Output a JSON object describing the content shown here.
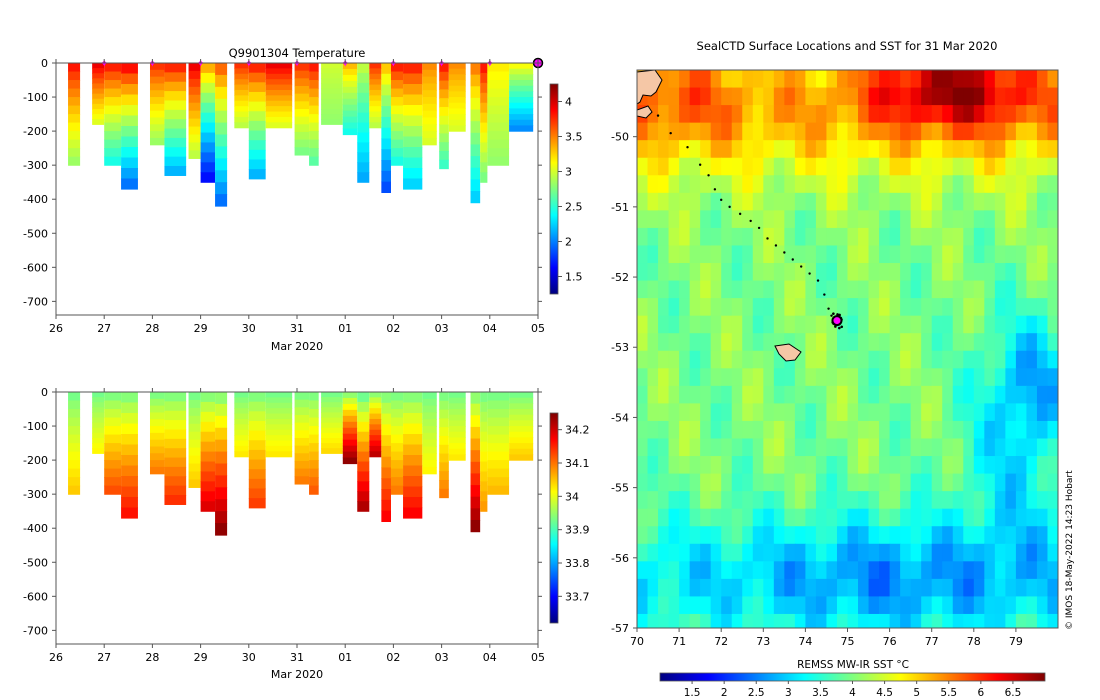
{
  "title_temp": "Q9901304  Temperature",
  "title_map": "SealCTD Surface Locations and SST for 31 Mar 2020",
  "copyright": "© IMOS 18-May-2022 14:23 Hobart",
  "colors": {
    "jet": [
      "#00007f",
      "#0000ff",
      "#007fff",
      "#00ffff",
      "#7fff7f",
      "#ffff00",
      "#ff7f00",
      "#ff0000",
      "#7f0000"
    ],
    "seal_marker": "#ff00ff",
    "land": "#f5c7a6"
  },
  "chart_data": [
    {
      "type": "heatmap",
      "name": "temperature-section",
      "title": "Q9901304  Temperature",
      "xlabel": "Mar 2020",
      "ylabel": "",
      "x_ticks": [
        "26",
        "27",
        "28",
        "29",
        "30",
        "31",
        "01",
        "02",
        "03",
        "04",
        "05"
      ],
      "xlim": [
        26,
        36
      ],
      "y_ticks": [
        0,
        -100,
        -200,
        -300,
        -400,
        -500,
        -600,
        -700
      ],
      "ylim": [
        -740,
        0
      ],
      "colorbar": {
        "range": [
          1.25,
          4.25
        ],
        "ticks": [
          "1.5",
          "2",
          "2.5",
          "3",
          "3.5",
          "4"
        ]
      },
      "profile_markers_day": [
        27,
        28,
        29,
        30,
        31,
        32,
        33,
        34,
        35
      ],
      "last_position_day": 36,
      "profiles": {
        "start_day": [
          26.25,
          26.75,
          27.0,
          27.35,
          27.95,
          28.25,
          28.75,
          29.0,
          29.3,
          29.7,
          30.0,
          30.35,
          30.95,
          31.25,
          31.5,
          31.95,
          32.25,
          32.5,
          32.75,
          32.95,
          33.2,
          33.6,
          33.95,
          34.15,
          34.6,
          34.8,
          34.95,
          35.4
        ],
        "end_day": [
          26.5,
          27.0,
          27.35,
          27.7,
          28.25,
          28.7,
          29.0,
          29.3,
          29.55,
          30.0,
          30.35,
          30.9,
          31.25,
          31.45,
          31.95,
          32.25,
          32.5,
          32.75,
          32.95,
          33.2,
          33.6,
          33.9,
          34.15,
          34.5,
          34.8,
          34.95,
          35.4,
          35.9
        ],
        "max_depth_m": [
          300,
          180,
          300,
          370,
          240,
          330,
          280,
          350,
          420,
          190,
          340,
          190,
          270,
          300,
          180,
          210,
          350,
          190,
          380,
          300,
          370,
          240,
          310,
          200,
          410,
          350,
          300,
          200
        ],
        "surface_temp_c": [
          3.9,
          4.0,
          3.9,
          4.0,
          3.8,
          3.9,
          4.0,
          3.5,
          3.7,
          3.8,
          3.9,
          4.0,
          3.8,
          3.9,
          3.0,
          3.4,
          3.0,
          3.8,
          3.4,
          3.9,
          3.9,
          3.5,
          3.9,
          3.5,
          3.6,
          3.9,
          3.2,
          3.2
        ],
        "bottom_temp_c": [
          2.8,
          3.0,
          2.4,
          1.9,
          2.8,
          2.1,
          2.9,
          1.6,
          1.9,
          2.9,
          2.1,
          3.0,
          2.7,
          2.6,
          2.8,
          2.4,
          2.1,
          2.9,
          1.8,
          2.4,
          2.2,
          3.0,
          2.5,
          3.0,
          2.2,
          2.7,
          2.8,
          2.0
        ]
      }
    },
    {
      "type": "heatmap",
      "name": "salinity-section",
      "title": "",
      "xlabel": "Mar 2020",
      "ylabel": "",
      "x_ticks": [
        "26",
        "27",
        "28",
        "29",
        "30",
        "31",
        "01",
        "02",
        "03",
        "04",
        "05"
      ],
      "xlim": [
        26,
        36
      ],
      "y_ticks": [
        0,
        -100,
        -200,
        -300,
        -400,
        -500,
        -600,
        -700
      ],
      "ylim": [
        -740,
        0
      ],
      "colorbar": {
        "range": [
          33.62,
          34.25
        ],
        "ticks": [
          "33.7",
          "33.8",
          "33.9",
          "34",
          "34.1",
          "34.2"
        ]
      },
      "profiles": {
        "start_day": [
          26.25,
          26.75,
          27.0,
          27.35,
          27.95,
          28.25,
          28.75,
          29.0,
          29.3,
          29.7,
          30.0,
          30.35,
          30.95,
          31.25,
          31.5,
          31.95,
          32.25,
          32.5,
          32.75,
          32.95,
          33.2,
          33.6,
          33.95,
          34.15,
          34.6,
          34.8,
          34.95,
          35.4
        ],
        "end_day": [
          26.5,
          27.0,
          27.35,
          27.7,
          28.25,
          28.7,
          29.0,
          29.3,
          29.55,
          30.0,
          30.35,
          30.9,
          31.25,
          31.45,
          31.95,
          32.25,
          32.5,
          32.75,
          32.95,
          33.2,
          33.6,
          33.9,
          34.15,
          34.5,
          34.8,
          34.95,
          35.4,
          35.9
        ],
        "max_depth_m": [
          300,
          180,
          300,
          370,
          240,
          330,
          280,
          350,
          420,
          190,
          340,
          190,
          270,
          300,
          180,
          210,
          350,
          190,
          380,
          300,
          370,
          240,
          310,
          200,
          410,
          350,
          300,
          200
        ],
        "surface_sal_psu": [
          33.92,
          33.92,
          33.92,
          33.92,
          33.92,
          33.92,
          33.92,
          33.92,
          33.92,
          33.92,
          33.92,
          33.92,
          33.92,
          33.92,
          33.92,
          33.92,
          33.9,
          33.92,
          33.92,
          33.92,
          33.92,
          33.92,
          33.92,
          33.92,
          33.92,
          33.92,
          33.92,
          33.92
        ],
        "bottom_sal_psu": [
          34.05,
          34.02,
          34.13,
          34.17,
          34.1,
          34.15,
          34.05,
          34.2,
          34.25,
          34.03,
          34.14,
          34.03,
          34.1,
          34.12,
          34.04,
          34.25,
          34.23,
          34.22,
          34.18,
          34.1,
          34.18,
          34.02,
          34.1,
          34.03,
          34.25,
          34.08,
          34.06,
          34.05
        ]
      }
    },
    {
      "type": "heatmap",
      "name": "sst-map",
      "title": "SealCTD Surface Locations and SST for 31 Mar 2020",
      "xlabel": "",
      "ylabel": "",
      "x_ticks": [
        "70",
        "71",
        "72",
        "73",
        "74",
        "75",
        "76",
        "77",
        "78",
        "79"
      ],
      "xlim": [
        70,
        80
      ],
      "y_ticks": [
        "-50",
        "-51",
        "-52",
        "-53",
        "-54",
        "-55",
        "-56",
        "-57"
      ],
      "ylim": [
        -57,
        -49.05
      ],
      "colorbar": {
        "label": "REMSS MW-IR SST °C",
        "range": [
          1.0,
          7.0
        ],
        "ticks": [
          "1.5",
          "2",
          "2.5",
          "3",
          "3.5",
          "4",
          "4.5",
          "5",
          "5.5",
          "6",
          "6.5"
        ]
      },
      "track": {
        "lon": [
          70.5,
          70.8,
          71.2,
          71.5,
          71.7,
          71.85,
          72.0,
          72.2,
          72.45,
          72.7,
          72.9,
          73.1,
          73.3,
          73.5,
          73.7,
          73.9,
          74.1,
          74.3,
          74.45,
          74.55,
          74.62,
          74.67
        ],
        "lat": [
          -49.7,
          -49.95,
          -50.15,
          -50.4,
          -50.55,
          -50.75,
          -50.9,
          -51.0,
          -51.1,
          -51.2,
          -51.3,
          -51.45,
          -51.55,
          -51.65,
          -51.75,
          -51.85,
          -51.95,
          -52.05,
          -52.25,
          -52.45,
          -52.55,
          -52.62
        ]
      },
      "last_position": {
        "lon": 74.75,
        "lat": -52.62
      }
    }
  ]
}
